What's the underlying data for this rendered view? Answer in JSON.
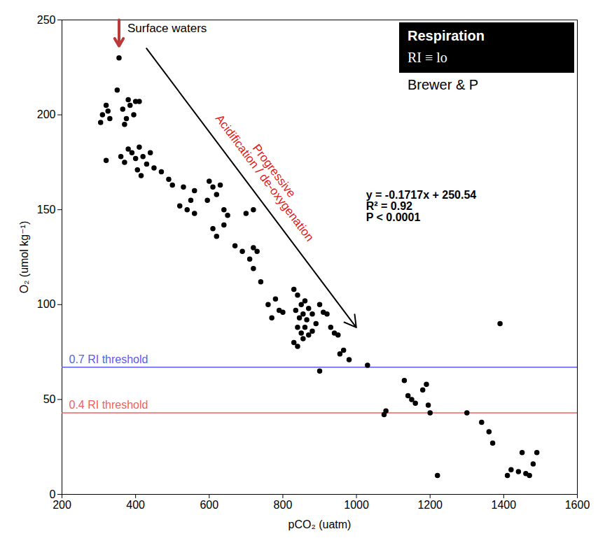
{
  "chart_data": {
    "type": "scatter",
    "x_label": "pCO₂ (uatm)",
    "y_label": "O₂ (umol kg⁻¹)",
    "x": [
      355,
      350,
      320,
      310,
      305,
      330,
      380,
      385,
      400,
      410,
      365,
      375,
      370,
      395,
      325,
      320,
      360,
      370,
      380,
      390,
      400,
      410,
      420,
      440,
      430,
      450,
      405,
      415,
      470,
      490,
      500,
      530,
      560,
      600,
      610,
      620,
      630,
      595,
      640,
      650,
      520,
      540,
      550,
      560,
      700,
      720,
      610,
      620,
      640,
      670,
      690,
      710,
      720,
      730,
      720,
      740,
      760,
      780,
      790,
      800,
      770,
      830,
      840,
      850,
      860,
      835,
      845,
      855,
      865,
      870,
      880,
      890,
      900,
      910,
      840,
      850,
      860,
      870,
      880,
      830,
      840,
      855,
      920,
      930,
      940,
      950,
      955,
      965,
      980,
      1030,
      900,
      1075,
      1080,
      1130,
      1140,
      1150,
      1160,
      1180,
      1190,
      1195,
      1200,
      1220,
      1300,
      1340,
      1360,
      1370,
      1390,
      1410,
      1420,
      1440,
      1450,
      1460,
      1470,
      1480,
      1490
    ],
    "values": [
      230,
      213,
      205,
      200,
      196,
      198,
      208,
      205,
      207,
      207,
      203,
      198,
      195,
      200,
      202,
      176,
      178,
      175,
      182,
      180,
      177,
      183,
      178,
      180,
      174,
      172,
      171,
      168,
      170,
      166,
      163,
      162,
      160,
      165,
      162,
      158,
      163,
      155,
      150,
      147,
      152,
      150,
      155,
      148,
      148,
      150,
      140,
      136,
      142,
      131,
      128,
      124,
      130,
      128,
      119,
      112,
      100,
      103,
      97,
      96,
      93,
      108,
      105,
      100,
      102,
      97,
      93,
      95,
      92,
      98,
      95,
      90,
      100,
      96,
      88,
      85,
      88,
      84,
      86,
      80,
      78,
      82,
      95,
      88,
      85,
      84,
      74,
      76,
      71,
      68,
      65,
      42,
      44,
      60,
      52,
      50,
      48,
      55,
      58,
      47,
      43,
      10,
      43,
      38,
      33,
      27,
      90,
      10,
      13,
      12,
      22,
      11,
      10,
      16,
      22
    ],
    "color": "#000000",
    "marker": "circle",
    "xlim": [
      200,
      1600
    ],
    "xticks": [
      200,
      400,
      600,
      800,
      1000,
      1200,
      1400,
      1600
    ],
    "ylim": [
      0,
      250
    ],
    "yticks": [
      0,
      50,
      100,
      150,
      200,
      250
    ],
    "grid": false,
    "thresholds": [
      {
        "value": 67,
        "label": "0.7 RI threshold",
        "color": "#5b5bf0"
      },
      {
        "value": 43,
        "label": "0.4 RI threshold",
        "color": "#f06060"
      }
    ],
    "annotations": {
      "surface": "Surface waters",
      "trend": [
        "Progressive",
        "Acidification / de-oxygenation"
      ],
      "regression": [
        "y = -0.1717x + 250.54",
        "R² = 0.92",
        "P < 0.0001"
      ],
      "box": {
        "title": "Respiration",
        "formula": "RI ≡ lo",
        "source": "Brewer & P"
      }
    }
  }
}
